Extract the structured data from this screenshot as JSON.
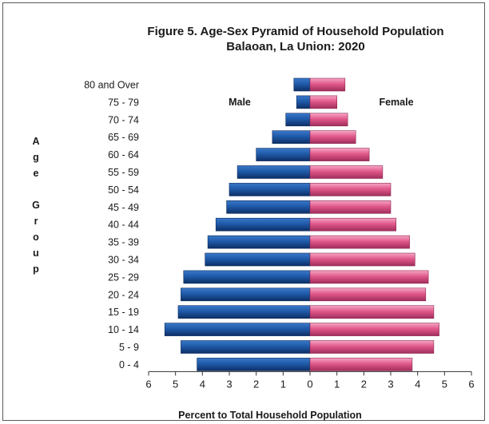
{
  "chart_data": {
    "type": "bar",
    "title": "Figure 5. Age-Sex Pyramid of Household Population",
    "subtitle": "Balaoan, La Union: 2020",
    "xlabel": "Percent to Total Household Population",
    "ylabel": "Age Group",
    "categories": [
      "80 and Over",
      "75 - 79",
      "70 - 74",
      "65 - 69",
      "60 - 64",
      "55 - 59",
      "50 - 54",
      "45 - 49",
      "40 - 44",
      "35 - 39",
      "30 - 34",
      "25 - 29",
      "20 - 24",
      "15 - 19",
      "10 - 14",
      "5 -  9",
      "0 -  4"
    ],
    "series": [
      {
        "name": "Male",
        "color": "#1f5aa8",
        "values": [
          0.6,
          0.5,
          0.9,
          1.4,
          2.0,
          2.7,
          3.0,
          3.1,
          3.5,
          3.8,
          3.9,
          4.7,
          4.8,
          4.9,
          5.4,
          4.8,
          4.2
        ]
      },
      {
        "name": "Female",
        "color": "#e0588a",
        "values": [
          1.3,
          1.0,
          1.4,
          1.7,
          2.2,
          2.7,
          3.0,
          3.0,
          3.2,
          3.7,
          3.9,
          4.4,
          4.3,
          4.6,
          4.8,
          4.6,
          3.8
        ]
      }
    ],
    "xticks": [
      "6",
      "5",
      "4",
      "3",
      "2",
      "1",
      "0",
      "1",
      "2",
      "3",
      "4",
      "5",
      "6"
    ],
    "xlim": [
      -6,
      6
    ],
    "grid": false,
    "legend": "inline labels"
  }
}
